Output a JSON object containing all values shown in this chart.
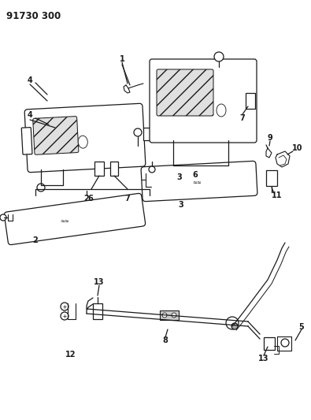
{
  "title": "91730 300",
  "bg_color": "#ffffff",
  "lc": "#1a1a1a",
  "fig_w": 3.95,
  "fig_h": 5.33,
  "dpi": 100
}
